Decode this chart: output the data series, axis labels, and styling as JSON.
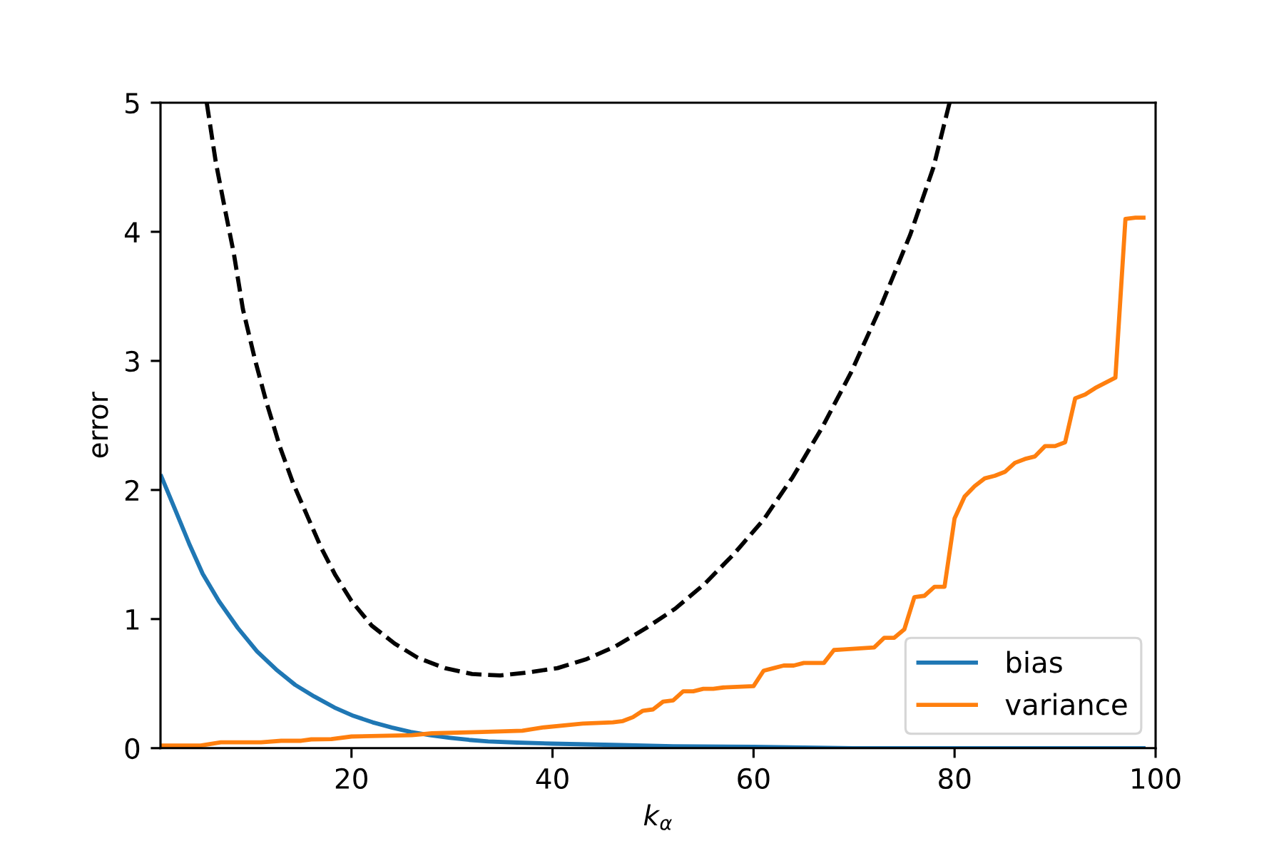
{
  "chart_data": {
    "type": "line",
    "xlabel": "k$_{α}$",
    "ylabel": "error",
    "xlim": [
      1,
      100
    ],
    "ylim": [
      0,
      5
    ],
    "xticks": [
      20,
      40,
      60,
      80,
      100
    ],
    "yticks": [
      0,
      1,
      2,
      3,
      4,
      5
    ],
    "grid": false,
    "legend": "bottom right",
    "series": [
      {
        "name": "bias",
        "color": "#1f77b4",
        "line_style": "solid",
        "x": [
          1,
          2.5,
          3.9,
          5.2,
          6.8,
          8.7,
          10.6,
          12.5,
          14.4,
          16.3,
          18.3,
          20.2,
          22.1,
          24,
          25.9,
          27.8,
          29.8,
          31.7,
          33.6,
          36.5,
          40,
          46,
          52,
          60,
          70,
          80,
          90,
          99
        ],
        "values": [
          2.12,
          1.84,
          1.575,
          1.35,
          1.14,
          0.93,
          0.75,
          0.61,
          0.49,
          0.4,
          0.315,
          0.25,
          0.2,
          0.16,
          0.125,
          0.1,
          0.08,
          0.064,
          0.052,
          0.043,
          0.035,
          0.025,
          0.015,
          0.01,
          0,
          0,
          0,
          0
        ]
      },
      {
        "name": "variance",
        "color": "#ff7f0e",
        "line_style": "solid",
        "x": [
          1,
          5,
          7,
          11,
          13,
          15,
          16,
          18,
          20,
          26,
          28,
          33,
          37,
          39,
          43,
          46,
          47,
          48,
          49,
          50,
          51,
          52,
          53,
          54,
          55,
          56,
          57,
          60,
          61,
          62,
          63,
          64,
          65,
          67,
          68,
          69,
          72,
          73,
          74,
          75,
          76,
          77,
          78,
          79,
          80,
          81,
          82,
          83,
          84,
          85,
          86,
          87,
          88,
          89,
          90,
          91,
          92,
          93,
          94,
          96,
          97,
          98,
          99
        ],
        "values": [
          0.02,
          0.02,
          0.045,
          0.045,
          0.057,
          0.057,
          0.068,
          0.07,
          0.09,
          0.1,
          0.115,
          0.125,
          0.135,
          0.16,
          0.19,
          0.2,
          0.21,
          0.24,
          0.29,
          0.3,
          0.36,
          0.37,
          0.44,
          0.44,
          0.46,
          0.46,
          0.47,
          0.48,
          0.6,
          0.62,
          0.64,
          0.64,
          0.66,
          0.66,
          0.76,
          0.765,
          0.78,
          0.855,
          0.855,
          0.92,
          1.17,
          1.18,
          1.25,
          1.25,
          1.78,
          1.95,
          2.03,
          2.09,
          2.11,
          2.14,
          2.21,
          2.24,
          2.26,
          2.34,
          2.34,
          2.37,
          2.71,
          2.74,
          2.79,
          2.87,
          4.1,
          4.11,
          4.11
        ]
      },
      {
        "color": "#000000",
        "line_style": "dashed",
        "x": [
          5.6,
          6.5,
          7.4,
          8.3,
          9.2,
          10.4,
          11.5,
          12.9,
          14.2,
          15.6,
          17,
          18.4,
          20,
          22,
          24.3,
          26.6,
          29.3,
          32,
          34.8,
          37.6,
          40.5,
          43.4,
          46.3,
          49.3,
          52.2,
          55.1,
          58,
          61,
          63.9,
          66.8,
          69.7,
          72.6,
          75.6,
          77.9,
          79.5
        ],
        "values": [
          5,
          4.54,
          4.18,
          3.83,
          3.4,
          3.01,
          2.69,
          2.33,
          2.05,
          1.8,
          1.55,
          1.34,
          1.14,
          0.95,
          0.81,
          0.7,
          0.62,
          0.574,
          0.563,
          0.587,
          0.62,
          0.69,
          0.79,
          0.93,
          1.08,
          1.27,
          1.5,
          1.77,
          2.1,
          2.48,
          2.91,
          3.41,
          3.98,
          4.5,
          5
        ]
      }
    ]
  }
}
